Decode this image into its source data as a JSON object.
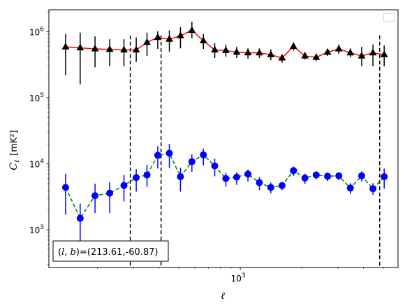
{
  "chart_data": {
    "type": "scatter",
    "xlabel": "ℓ",
    "ylabel_main": "C",
    "ylabel_sub": "ℓ",
    "ylabel_unit": "[mK²]",
    "x_scale": "log",
    "y_scale": "log",
    "xlim": [
      116,
      5900
    ],
    "ylim": [
      270,
      2150000
    ],
    "x_tick_major": [
      1000
    ],
    "x_tick_major_labels": [
      {
        "base": "10",
        "exp": "3"
      }
    ],
    "y_tick_major": [
      1000,
      10000,
      100000,
      1000000
    ],
    "y_tick_major_labels": [
      {
        "base": "10",
        "exp": "3"
      },
      {
        "base": "10",
        "exp": "4"
      },
      {
        "base": "10",
        "exp": "5"
      },
      {
        "base": "10",
        "exp": "6"
      }
    ],
    "vlines": [
      290,
      410,
      4800
    ],
    "legend": {
      "placement": "top-right",
      "entries": []
    },
    "annotation": {
      "text": "(l, b)=(213.61,-60.87)",
      "placement": "bottom-left"
    },
    "x": [
      140,
      165,
      195,
      230,
      270,
      310,
      350,
      395,
      450,
      510,
      580,
      660,
      750,
      850,
      960,
      1090,
      1240,
      1410,
      1600,
      1820,
      2070,
      2350,
      2670,
      3030,
      3450,
      3920,
      4450,
      5050
    ],
    "series": [
      {
        "marker": "triangle",
        "color": "#000000",
        "line_color": "#ff0000",
        "line_style": "solid",
        "y": [
          590000,
          570000,
          550000,
          540000,
          530000,
          530000,
          690000,
          820000,
          770000,
          870000,
          1050000,
          730000,
          530000,
          520000,
          490000,
          480000,
          480000,
          450000,
          400000,
          600000,
          430000,
          410000,
          490000,
          550000,
          480000,
          430000,
          480000,
          450000
        ],
        "lo": [
          220000,
          160000,
          290000,
          300000,
          300000,
          350000,
          430000,
          550000,
          500000,
          560000,
          800000,
          550000,
          400000,
          420000,
          400000,
          390000,
          400000,
          370000,
          340000,
          520000,
          380000,
          360000,
          430000,
          460000,
          410000,
          300000,
          300000,
          300000
        ],
        "hi": [
          930000,
          970000,
          850000,
          770000,
          770000,
          820000,
          970000,
          1020000,
          1050000,
          1180000,
          1420000,
          920000,
          670000,
          640000,
          590000,
          560000,
          560000,
          540000,
          450000,
          680000,
          490000,
          460000,
          550000,
          640000,
          560000,
          590000,
          640000,
          620000
        ]
      },
      {
        "marker": "circle",
        "color": "#0000ff",
        "line_color": "#008000",
        "line_style": "dashed",
        "y": [
          4400,
          1500,
          3300,
          3600,
          4700,
          6200,
          6800,
          13500,
          14500,
          6400,
          10800,
          13700,
          9300,
          6000,
          6300,
          7000,
          5200,
          4400,
          4700,
          7900,
          6100,
          6800,
          6500,
          6600,
          4300,
          6600,
          4200,
          6400
        ],
        "lo": [
          1700,
          500,
          1800,
          1800,
          2700,
          3800,
          4500,
          8500,
          8600,
          3800,
          7600,
          9500,
          6500,
          4500,
          4800,
          5400,
          4000,
          3600,
          4000,
          6600,
          5000,
          5800,
          5500,
          5700,
          3500,
          5400,
          3400,
          4200
        ],
        "hi": [
          7100,
          2500,
          5000,
          5300,
          6800,
          8300,
          9700,
          18500,
          20000,
          8700,
          14000,
          17000,
          12000,
          7300,
          7500,
          8200,
          6300,
          5200,
          5300,
          9100,
          7100,
          7700,
          7400,
          7400,
          5100,
          7700,
          5100,
          8500
        ]
      }
    ]
  }
}
